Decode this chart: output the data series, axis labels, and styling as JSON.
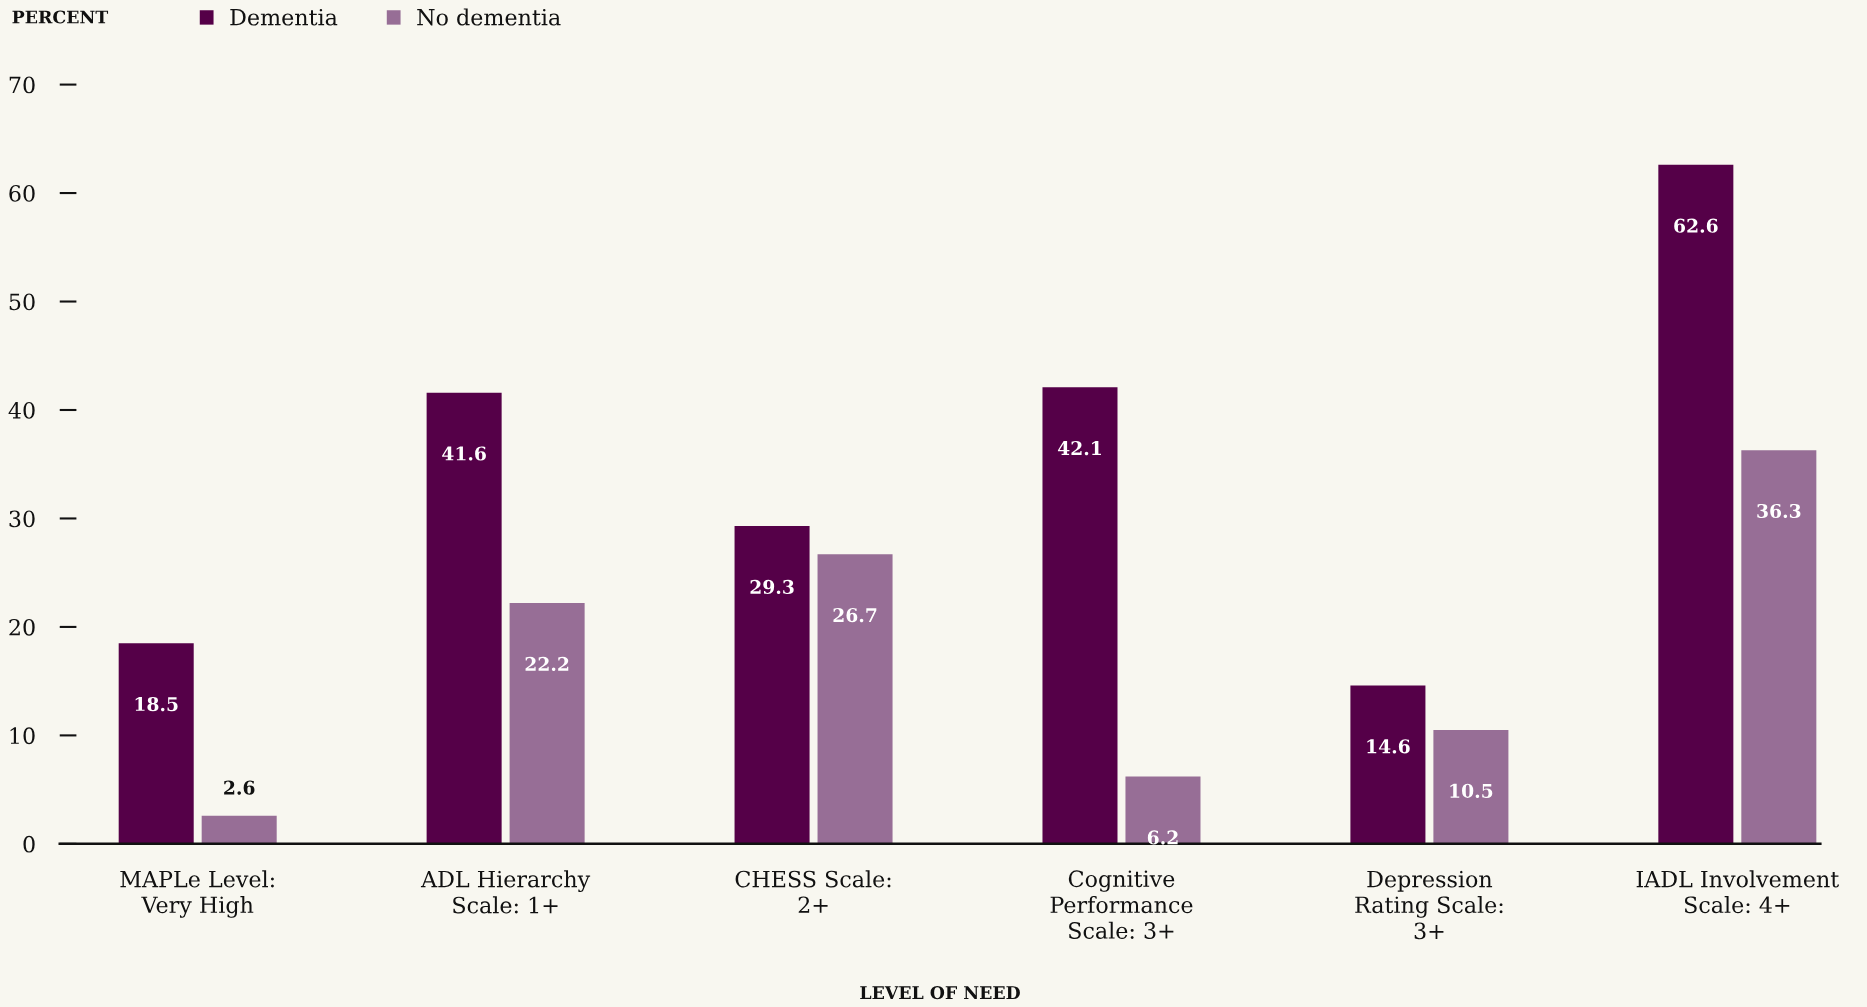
{
  "chart_data": {
    "type": "bar",
    "xlabel": "LEVEL OF NEED",
    "ylabel": "PERCENT",
    "categories": [
      "MAPLe Level:\nVery High",
      "ADL Hierarchy\nScale: 1+",
      "CHESS Scale:\n2+",
      "Cognitive\nPerformance\nScale: 3+",
      "Depression\nRating Scale:\n3+",
      "IADL Involvement\nScale: 4+"
    ],
    "series": [
      {
        "name": "Dementia",
        "color": "#550048",
        "values": [
          18.5,
          41.6,
          29.3,
          42.1,
          14.6,
          62.6
        ]
      },
      {
        "name": "No dementia",
        "color": "#976e96",
        "values": [
          2.6,
          22.2,
          26.7,
          6.2,
          10.5,
          36.3
        ]
      }
    ],
    "ylim": [
      0,
      70
    ],
    "yticks": [
      0,
      10,
      20,
      30,
      40,
      50,
      60,
      70
    ],
    "data_labels": true,
    "legend": "top left"
  }
}
